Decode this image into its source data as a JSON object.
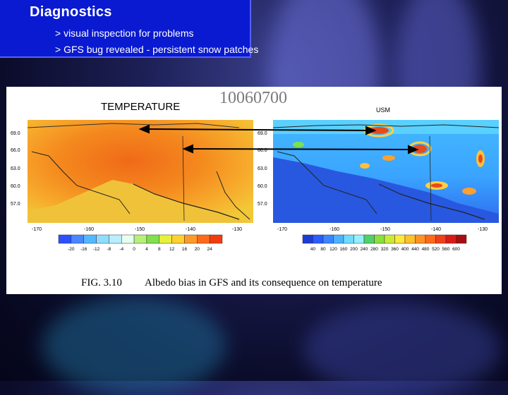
{
  "slide": {
    "title": "Diagnostics",
    "bullets": [
      "> visual inspection for problems",
      "> GFS bug revealed - persistent snow patches"
    ]
  },
  "figure": {
    "date_code": "10060700",
    "left_panel": {
      "title": "TEMPERATURE",
      "lat_labels": [
        "69.0",
        "66.0",
        "63.0",
        "60.0",
        "57.0"
      ],
      "lon_labels": [
        "-170",
        "-160",
        "-150",
        "-140",
        "-130"
      ],
      "colorbar_labels": [
        "-20",
        "-16",
        "-12",
        "-8",
        "-4",
        "0",
        "4",
        "8",
        "12",
        "16",
        "20",
        "24"
      ],
      "colorbar_colors": [
        "#2a50ff",
        "#4a86ff",
        "#55b8ff",
        "#8edcff",
        "#b8eeff",
        "#e6fff0",
        "#b6f07a",
        "#7ee24a",
        "#e8f03c",
        "#ffd030",
        "#ff9a28",
        "#ff6a1a",
        "#f03c10"
      ]
    },
    "right_panel": {
      "title": "USM",
      "lat_labels": [
        "69.0",
        "66.0",
        "63.0",
        "60.0",
        "57.0"
      ],
      "lon_labels": [
        "-170",
        "-160",
        "-150",
        "-140",
        "-130"
      ],
      "colorbar_labels": [
        "40",
        "80",
        "120",
        "160",
        "200",
        "240",
        "280",
        "320",
        "360",
        "400",
        "440",
        "480",
        "520",
        "560",
        "600"
      ],
      "colorbar_colors": [
        "#1c3cd8",
        "#2a5cff",
        "#3a86ff",
        "#4ab4ff",
        "#6edcff",
        "#96f0ff",
        "#4ed26a",
        "#8ae03c",
        "#c8ec36",
        "#ffe83a",
        "#ffc02e",
        "#ff9224",
        "#ff6a1a",
        "#f0401a",
        "#d81c14",
        "#a80c10"
      ]
    },
    "caption_label": "FIG. 3.10",
    "caption_text": "Albedo bias in GFS and its consequence on temperature"
  }
}
